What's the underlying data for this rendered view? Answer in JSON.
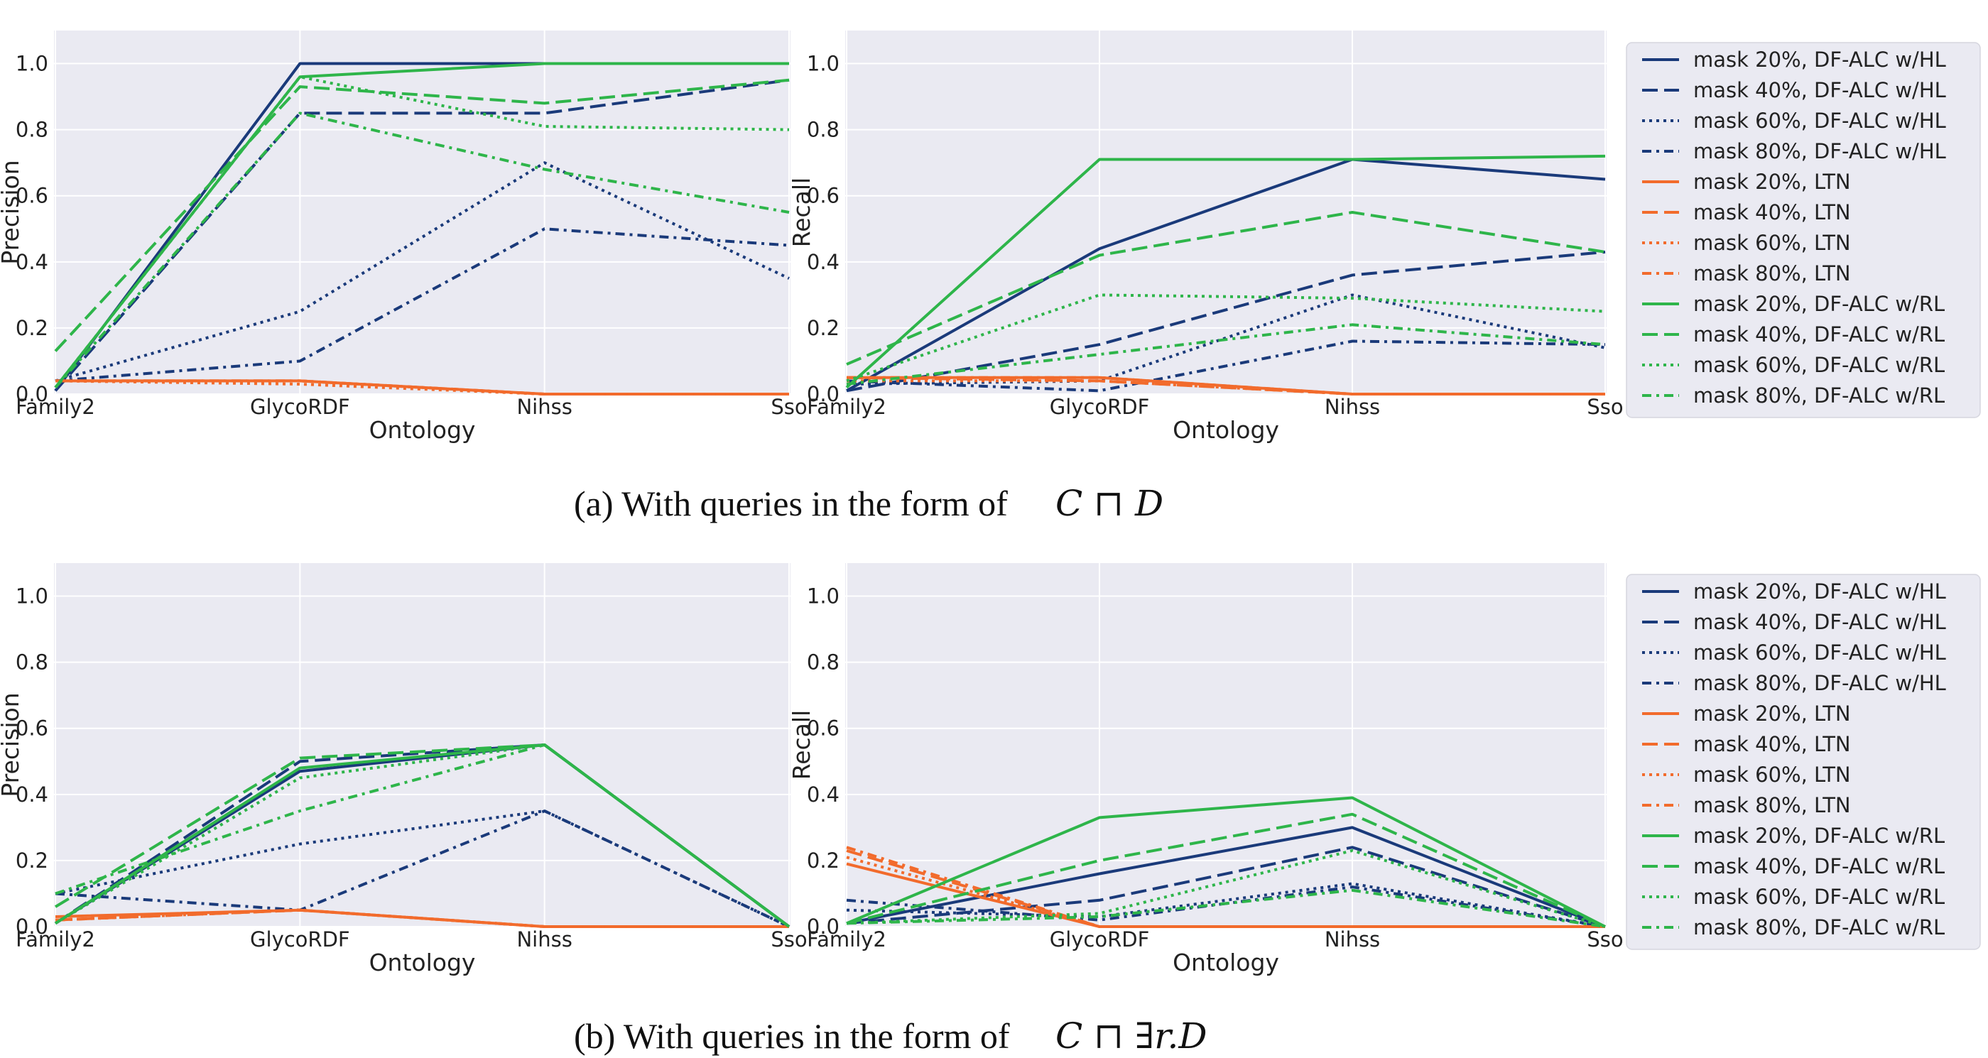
{
  "colors": {
    "dfalc_hl": "#1a3a7a",
    "ltn": "#f26b2c",
    "dfalc_rl": "#2eb54a",
    "panel_bg": "#eaeaf2",
    "grid": "#ffffff"
  },
  "legend_entries": [
    {
      "label": "mask 20%, DF-ALC w/HL",
      "color": "#1a3a7a",
      "dash": "solid"
    },
    {
      "label": "mask 40%, DF-ALC w/HL",
      "color": "#1a3a7a",
      "dash": "dashed"
    },
    {
      "label": "mask 60%, DF-ALC w/HL",
      "color": "#1a3a7a",
      "dash": "dotted"
    },
    {
      "label": "mask 80%, DF-ALC w/HL",
      "color": "#1a3a7a",
      "dash": "dashdot"
    },
    {
      "label": "mask 20%, LTN",
      "color": "#f26b2c",
      "dash": "solid"
    },
    {
      "label": "mask 40%, LTN",
      "color": "#f26b2c",
      "dash": "dashed"
    },
    {
      "label": "mask 60%, LTN",
      "color": "#f26b2c",
      "dash": "dotted"
    },
    {
      "label": "mask 80%, LTN",
      "color": "#f26b2c",
      "dash": "dashdot"
    },
    {
      "label": "mask 20%, DF-ALC w/RL",
      "color": "#2eb54a",
      "dash": "solid"
    },
    {
      "label": "mask 40%, DF-ALC w/RL",
      "color": "#2eb54a",
      "dash": "dashed"
    },
    {
      "label": "mask 60%, DF-ALC w/RL",
      "color": "#2eb54a",
      "dash": "dotted"
    },
    {
      "label": "mask 80%, DF-ALC w/RL",
      "color": "#2eb54a",
      "dash": "dashdot"
    }
  ],
  "captions": {
    "a": {
      "text": "(a) With queries in the form of",
      "math": "C ⊓ D"
    },
    "b": {
      "text": "(b) With queries in the form of",
      "math": "C ⊓ ∃r.D"
    }
  },
  "chart_data": [
    {
      "type": "line",
      "id": "a-precision",
      "xlabel": "Ontology",
      "ylabel": "Precision",
      "categories": [
        "Family2",
        "GlycoRDF",
        "Nihss",
        "Sso"
      ],
      "ylim": [
        0,
        1.1
      ],
      "yticks": [
        0.0,
        0.2,
        0.4,
        0.6,
        0.8,
        1.0
      ],
      "ytick_labels": [
        "0.0",
        "0.2",
        "0.4",
        "0.6",
        "0.8",
        "1.0"
      ],
      "series": [
        {
          "name": "mask 20%, DF-ALC w/HL",
          "values": [
            0.01,
            1.0,
            1.0,
            1.0
          ]
        },
        {
          "name": "mask 40%, DF-ALC w/HL",
          "values": [
            0.01,
            0.85,
            0.85,
            0.95
          ]
        },
        {
          "name": "mask 60%, DF-ALC w/HL",
          "values": [
            0.04,
            0.25,
            0.7,
            0.35
          ]
        },
        {
          "name": "mask 80%, DF-ALC w/HL",
          "values": [
            0.04,
            0.1,
            0.5,
            0.45
          ]
        },
        {
          "name": "mask 20%, LTN",
          "values": [
            0.04,
            0.04,
            0.0,
            0.0
          ]
        },
        {
          "name": "mask 40%, LTN",
          "values": [
            0.04,
            0.04,
            0.0,
            0.0
          ]
        },
        {
          "name": "mask 60%, LTN",
          "values": [
            0.04,
            0.03,
            0.0,
            0.0
          ]
        },
        {
          "name": "mask 80%, LTN",
          "values": [
            0.04,
            0.04,
            0.0,
            0.0
          ]
        },
        {
          "name": "mask 20%, DF-ALC w/RL",
          "values": [
            0.02,
            0.96,
            1.0,
            1.0
          ]
        },
        {
          "name": "mask 40%, DF-ALC w/RL",
          "values": [
            0.13,
            0.93,
            0.88,
            0.95
          ]
        },
        {
          "name": "mask 60%, DF-ALC w/RL",
          "values": [
            0.02,
            0.96,
            0.81,
            0.8
          ]
        },
        {
          "name": "mask 80%, DF-ALC w/RL",
          "values": [
            0.02,
            0.85,
            0.68,
            0.55
          ]
        }
      ]
    },
    {
      "type": "line",
      "id": "a-recall",
      "xlabel": "Ontology",
      "ylabel": "Recall",
      "categories": [
        "Family2",
        "GlycoRDF",
        "Nihss",
        "Sso"
      ],
      "ylim": [
        0,
        1.1
      ],
      "yticks": [
        0.0,
        0.2,
        0.4,
        0.6,
        0.8,
        1.0
      ],
      "ytick_labels": [
        "0.0",
        "0.2",
        "0.4",
        "0.6",
        "0.8",
        "1.0"
      ],
      "series": [
        {
          "name": "mask 20%, DF-ALC w/HL",
          "values": [
            0.01,
            0.44,
            0.71,
            0.65
          ]
        },
        {
          "name": "mask 40%, DF-ALC w/HL",
          "values": [
            0.01,
            0.15,
            0.36,
            0.43
          ]
        },
        {
          "name": "mask 60%, DF-ALC w/HL",
          "values": [
            0.03,
            0.04,
            0.3,
            0.14
          ]
        },
        {
          "name": "mask 80%, DF-ALC w/HL",
          "values": [
            0.04,
            0.01,
            0.16,
            0.15
          ]
        },
        {
          "name": "mask 20%, LTN",
          "values": [
            0.05,
            0.05,
            0.0,
            0.0
          ]
        },
        {
          "name": "mask 40%, LTN",
          "values": [
            0.05,
            0.04,
            0.0,
            0.0
          ]
        },
        {
          "name": "mask 60%, LTN",
          "values": [
            0.04,
            0.04,
            0.0,
            0.0
          ]
        },
        {
          "name": "mask 80%, LTN",
          "values": [
            0.05,
            0.05,
            0.0,
            0.0
          ]
        },
        {
          "name": "mask 20%, DF-ALC w/RL",
          "values": [
            0.02,
            0.71,
            0.71,
            0.72
          ]
        },
        {
          "name": "mask 40%, DF-ALC w/RL",
          "values": [
            0.09,
            0.42,
            0.55,
            0.43
          ]
        },
        {
          "name": "mask 60%, DF-ALC w/RL",
          "values": [
            0.04,
            0.3,
            0.29,
            0.25
          ]
        },
        {
          "name": "mask 80%, DF-ALC w/RL",
          "values": [
            0.03,
            0.12,
            0.21,
            0.15
          ]
        }
      ]
    },
    {
      "type": "line",
      "id": "b-precision",
      "xlabel": "Ontology",
      "ylabel": "Precision",
      "categories": [
        "Family2",
        "GlycoRDF",
        "Nihss",
        "Sso"
      ],
      "ylim": [
        0,
        1.1
      ],
      "yticks": [
        0.0,
        0.2,
        0.4,
        0.6,
        0.8,
        1.0
      ],
      "ytick_labels": [
        "0.0",
        "0.2",
        "0.4",
        "0.6",
        "0.8",
        "1.0"
      ],
      "series": [
        {
          "name": "mask 20%, DF-ALC w/HL",
          "values": [
            0.01,
            0.47,
            0.55,
            0.0
          ]
        },
        {
          "name": "mask 40%, DF-ALC w/HL",
          "values": [
            0.01,
            0.5,
            0.55,
            0.0
          ]
        },
        {
          "name": "mask 60%, DF-ALC w/HL",
          "values": [
            0.1,
            0.25,
            0.35,
            0.0
          ]
        },
        {
          "name": "mask 80%, DF-ALC w/HL",
          "values": [
            0.1,
            0.05,
            0.35,
            0.0
          ]
        },
        {
          "name": "mask 20%, LTN",
          "values": [
            0.03,
            0.05,
            0.0,
            0.0
          ]
        },
        {
          "name": "mask 40%, LTN",
          "values": [
            0.02,
            0.05,
            0.0,
            0.0
          ]
        },
        {
          "name": "mask 60%, LTN",
          "values": [
            0.02,
            0.05,
            0.0,
            0.0
          ]
        },
        {
          "name": "mask 80%, LTN",
          "values": [
            0.02,
            0.05,
            0.0,
            0.0
          ]
        },
        {
          "name": "mask 20%, DF-ALC w/RL",
          "values": [
            0.01,
            0.48,
            0.55,
            0.0
          ]
        },
        {
          "name": "mask 40%, DF-ALC w/RL",
          "values": [
            0.06,
            0.51,
            0.55,
            0.0
          ]
        },
        {
          "name": "mask 60%, DF-ALC w/RL",
          "values": [
            0.01,
            0.45,
            0.55,
            0.0
          ]
        },
        {
          "name": "mask 80%, DF-ALC w/RL",
          "values": [
            0.1,
            0.35,
            0.55,
            0.0
          ]
        }
      ]
    },
    {
      "type": "line",
      "id": "b-recall",
      "xlabel": "Ontology",
      "ylabel": "Recall",
      "categories": [
        "Family2",
        "GlycoRDF",
        "Nihss",
        "Sso"
      ],
      "ylim": [
        0,
        1.1
      ],
      "yticks": [
        0.0,
        0.2,
        0.4,
        0.6,
        0.8,
        1.0
      ],
      "ytick_labels": [
        "0.0",
        "0.2",
        "0.4",
        "0.6",
        "0.8",
        "1.0"
      ],
      "series": [
        {
          "name": "mask 20%, DF-ALC w/HL",
          "values": [
            0.01,
            0.16,
            0.3,
            0.0
          ]
        },
        {
          "name": "mask 40%, DF-ALC w/HL",
          "values": [
            0.01,
            0.08,
            0.24,
            0.0
          ]
        },
        {
          "name": "mask 60%, DF-ALC w/HL",
          "values": [
            0.05,
            0.03,
            0.13,
            0.0
          ]
        },
        {
          "name": "mask 80%, DF-ALC w/HL",
          "values": [
            0.08,
            0.02,
            0.12,
            0.0
          ]
        },
        {
          "name": "mask 20%, LTN",
          "values": [
            0.19,
            0.0,
            0.0,
            0.0
          ]
        },
        {
          "name": "mask 40%, LTN",
          "values": [
            0.23,
            0.0,
            0.0,
            0.0
          ]
        },
        {
          "name": "mask 60%, LTN",
          "values": [
            0.21,
            0.0,
            0.0,
            0.0
          ]
        },
        {
          "name": "mask 80%, LTN",
          "values": [
            0.24,
            0.0,
            0.0,
            0.0
          ]
        },
        {
          "name": "mask 20%, DF-ALC w/RL",
          "values": [
            0.01,
            0.33,
            0.39,
            0.0
          ]
        },
        {
          "name": "mask 40%, DF-ALC w/RL",
          "values": [
            0.01,
            0.2,
            0.34,
            0.0
          ]
        },
        {
          "name": "mask 60%, DF-ALC w/RL",
          "values": [
            0.01,
            0.04,
            0.23,
            0.0
          ]
        },
        {
          "name": "mask 80%, DF-ALC w/RL",
          "values": [
            0.01,
            0.03,
            0.11,
            0.0
          ]
        }
      ]
    }
  ]
}
